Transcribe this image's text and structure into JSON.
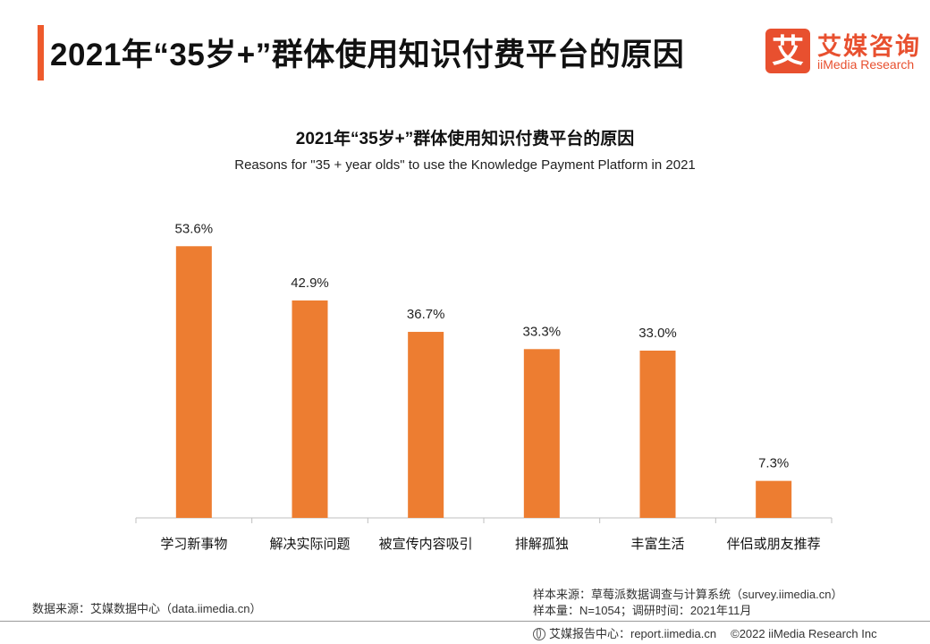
{
  "header": {
    "title": "2021年“35岁+”群体使用知识付费平台的原因",
    "logo_mark": "艾",
    "logo_cn": "艾媒咨询",
    "logo_en": "iiMedia Research"
  },
  "chart_data": {
    "type": "bar",
    "title": "2021年“35岁+”群体使用知识付费平台的原因",
    "subtitle": "Reasons for \"35 + year olds\" to use the Knowledge Payment Platform in 2021",
    "categories": [
      "学习新事物",
      "解决实际问题",
      "被宣传内容吸引",
      "排解孤独",
      "丰富生活",
      "伴侣或朋友推荐"
    ],
    "values": [
      53.6,
      42.9,
      36.7,
      33.3,
      33.0,
      7.3
    ],
    "value_labels": [
      "53.6%",
      "42.9%",
      "36.7%",
      "33.3%",
      "33.0%",
      "7.3%"
    ],
    "unit": "%",
    "ylim": [
      0,
      60
    ],
    "xlabel": "",
    "ylabel": "",
    "grid": false,
    "legend": "none",
    "bar_color": "#ed7d31"
  },
  "footer": {
    "source_left": "数据来源：艾媒数据中心（data.iimedia.cn）",
    "sample_source": "样本来源：草莓派数据调查与计算系统（survey.iimedia.cn）",
    "sample_size": "样本量：N=1054；调研时间：2021年11月",
    "report_center": "艾媒报告中心：report.iimedia.cn",
    "copyright": "©2022  iiMedia Research  Inc"
  }
}
